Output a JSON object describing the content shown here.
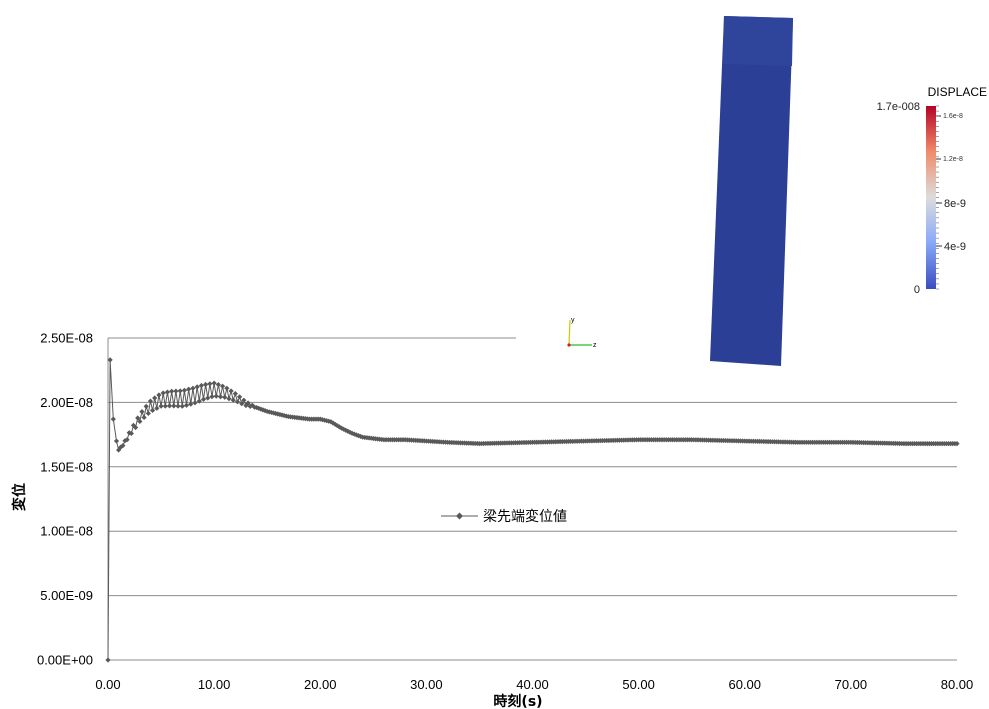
{
  "chart_data": {
    "type": "line",
    "xlabel": "時刻(s)",
    "ylabel": "変位",
    "xlim": [
      0,
      80
    ],
    "ylim": [
      0,
      2.5e-08
    ],
    "x_ticks": [
      "0.00",
      "10.00",
      "20.00",
      "30.00",
      "40.00",
      "50.00",
      "60.00",
      "70.00",
      "80.00"
    ],
    "y_ticks": [
      "0.00E+00",
      "5.00E-09",
      "1.00E-08",
      "1.50E-08",
      "2.00E-08",
      "2.50E-08"
    ],
    "grid": "horizontal",
    "legend_placement": "center",
    "series": [
      {
        "name": "梁先端変位値",
        "color": "#595959",
        "marker": "diamond",
        "x": [
          0.0,
          0.2,
          0.5,
          0.8,
          1.0,
          1.5,
          2.0,
          3.0,
          4.0,
          5.0,
          6.0,
          7.0,
          8.0,
          9.0,
          10.0,
          11.0,
          12.0,
          13.0,
          14.0,
          15.0,
          16.0,
          17.0,
          18.0,
          19.0,
          20.0,
          21.0,
          22.0,
          23.0,
          24.0,
          25.0,
          26.0,
          28.0,
          30.0,
          32.0,
          35.0,
          40.0,
          45.0,
          50.0,
          55.0,
          60.0,
          65.0,
          70.0,
          75.0,
          80.0
        ],
        "y": [
          0,
          2.33e-08,
          1.87e-08,
          1.7e-08,
          1.63e-08,
          1.68e-08,
          1.75e-08,
          1.88e-08,
          1.97e-08,
          2.02e-08,
          2.03e-08,
          2.03e-08,
          2.05e-08,
          2.08e-08,
          2.1e-08,
          2.08e-08,
          2.04e-08,
          1.99e-08,
          1.96e-08,
          1.93e-08,
          1.91e-08,
          1.89e-08,
          1.88e-08,
          1.87e-08,
          1.87e-08,
          1.85e-08,
          1.8e-08,
          1.76e-08,
          1.73e-08,
          1.72e-08,
          1.71e-08,
          1.71e-08,
          1.7e-08,
          1.69e-08,
          1.68e-08,
          1.69e-08,
          1.7e-08,
          1.71e-08,
          1.71e-08,
          1.7e-08,
          1.69e-08,
          1.69e-08,
          1.68e-08,
          1.68e-08
        ]
      }
    ]
  },
  "inset": {
    "colorbar": {
      "title": "DISPLACE",
      "max_label": "1.7e-008",
      "min_label": "0",
      "major_ticks": [
        "8e-9",
        "4e-9"
      ],
      "minor_ticks": [
        "1.6e-8",
        "1.2e-8"
      ]
    },
    "axes_triad": {
      "y": "y",
      "z": "z"
    },
    "beam_color": "#2a3f95"
  }
}
